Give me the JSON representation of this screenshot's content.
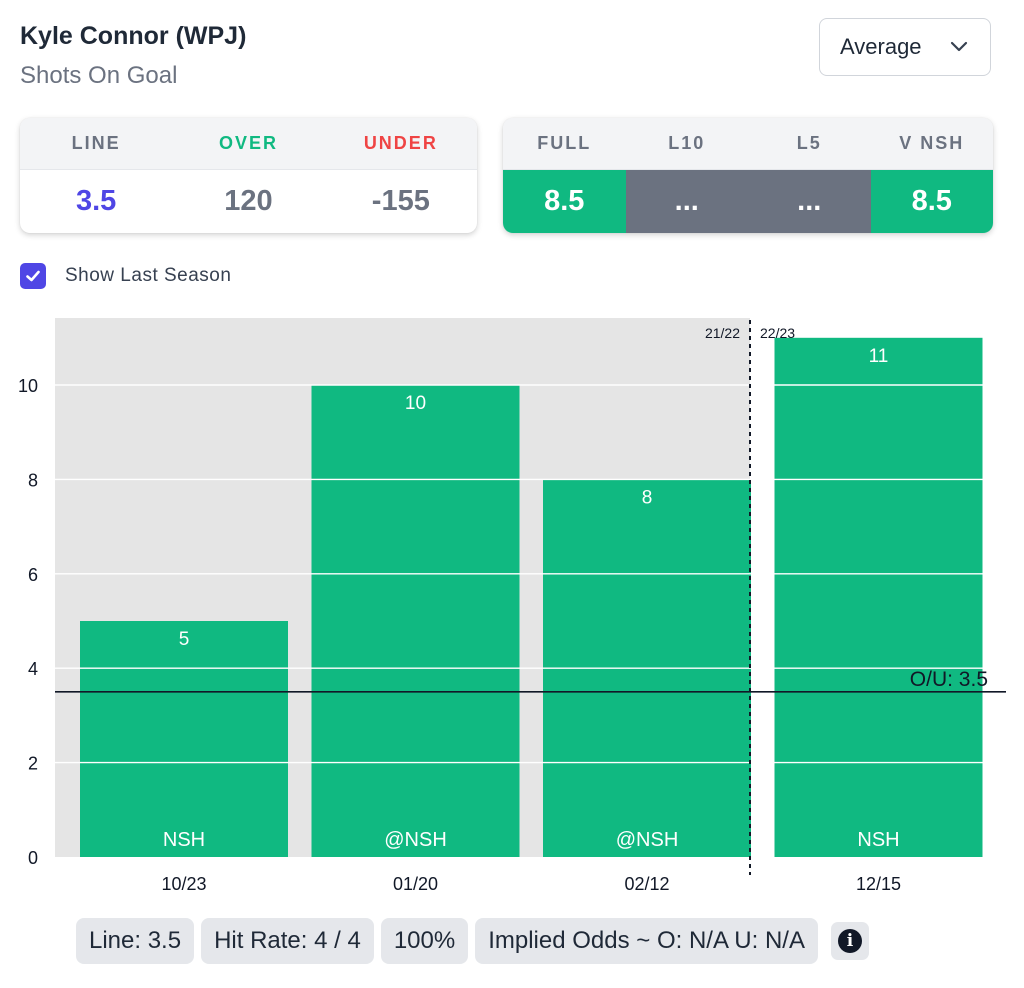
{
  "header": {
    "player": "Kyle Connor (WPJ)",
    "market": "Shots On Goal",
    "dropdown_value": "Average"
  },
  "odds_card": {
    "headers": [
      "LINE",
      "OVER",
      "UNDER"
    ],
    "values": [
      "3.5",
      "120",
      "-155"
    ]
  },
  "stats_card": {
    "headers": [
      "FULL",
      "L10",
      "L5",
      "V NSH"
    ],
    "values": [
      "8.5",
      "...",
      "...",
      "8.5"
    ]
  },
  "show_last_season": {
    "label": "Show Last Season",
    "checked": true
  },
  "colors": {
    "bar": "#10b981",
    "accent": "#4f46e5",
    "over": "#10b981",
    "under": "#ef4444",
    "neutral": "#6b7280"
  },
  "chart_data": {
    "type": "bar",
    "categories": [
      "10/23",
      "01/20",
      "02/12",
      "12/15"
    ],
    "opponents": [
      "NSH",
      "@NSH",
      "@NSH",
      "NSH"
    ],
    "values": [
      5,
      10,
      8,
      11
    ],
    "ylim": [
      0,
      11
    ],
    "yticks": [
      "0",
      "2",
      "4",
      "6",
      "8",
      "10"
    ],
    "threshold": 3.5,
    "threshold_label": "O/U: 3.5",
    "season_divider": {
      "after_index": 2,
      "left_label": "21/22",
      "right_label": "22/23"
    },
    "grid": true
  },
  "summary": {
    "line": "Line: 3.5",
    "hit_rate": "Hit Rate: 4 / 4",
    "hit_pct": "100%",
    "implied_odds": "Implied Odds ~ O: N/A U: N/A"
  },
  "icons": {
    "dropdown": "chevron-down-icon",
    "checkbox": "check-icon",
    "info": "info-icon"
  }
}
